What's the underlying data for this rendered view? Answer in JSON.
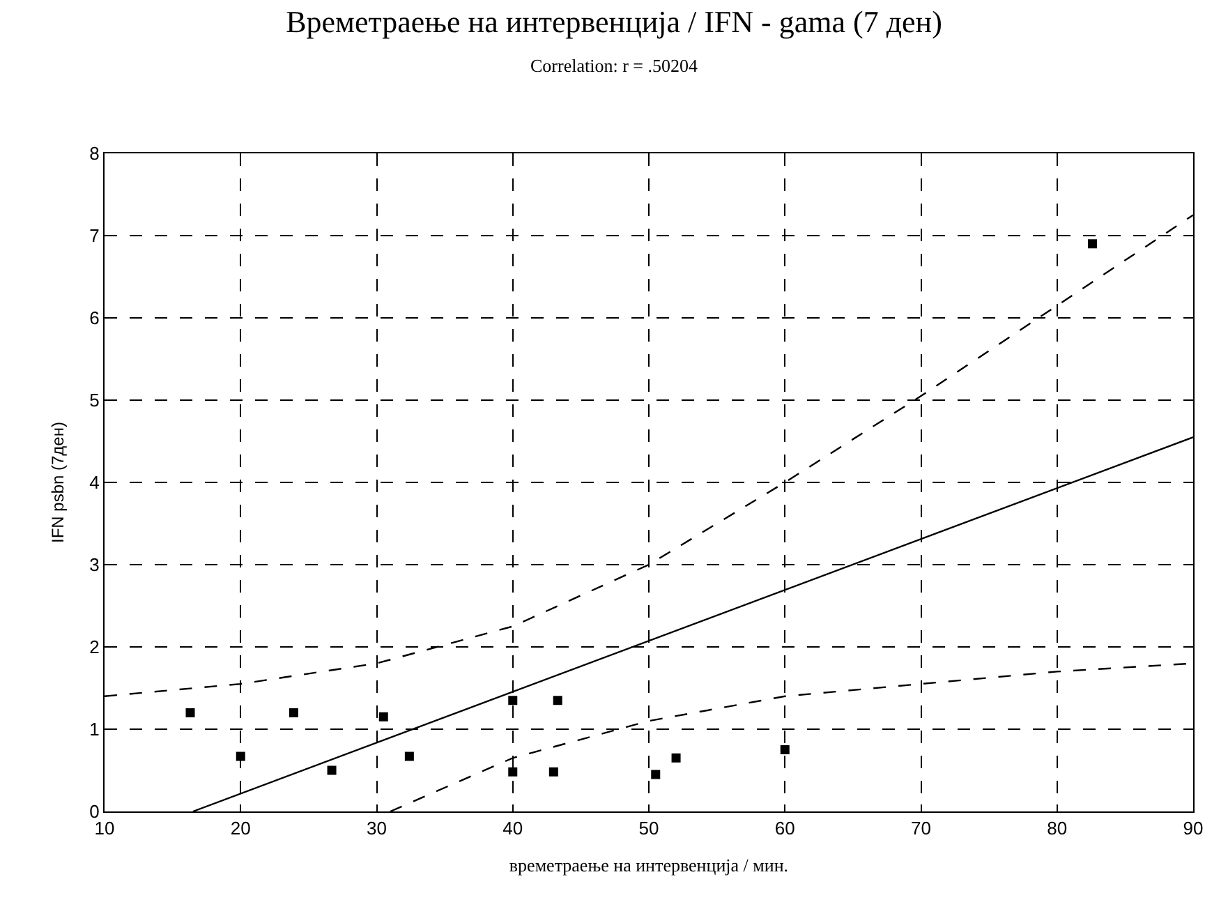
{
  "chart_data": {
    "type": "scatter",
    "title": "Времетраење на интервенција / IFN - gama (7 ден)",
    "subtitle": "Correlation: r = .50204",
    "xlabel": "времетраење на интервенција / мин.",
    "ylabel": "IFN psbn (7ден)",
    "xlim": [
      10,
      90
    ],
    "xticks": [
      10,
      20,
      30,
      40,
      50,
      60,
      70,
      80,
      90
    ],
    "ylim": [
      0,
      8
    ],
    "yticks": [
      0,
      1,
      2,
      3,
      4,
      5,
      6,
      7,
      8
    ],
    "grid": true,
    "series": [
      {
        "marker": "square",
        "color": "#000000",
        "x": [
          16.3,
          20,
          23.9,
          26.7,
          30.5,
          32.4,
          40,
          40,
          43,
          43.3,
          50.5,
          52,
          60,
          82.6
        ],
        "values": [
          1.2,
          0.67,
          1.2,
          0.5,
          1.15,
          0.67,
          1.35,
          0.48,
          0.48,
          1.35,
          0.45,
          0.65,
          0.75,
          6.9
        ]
      },
      {
        "type": "line",
        "line_style": "solid",
        "color": "#000000",
        "x": [
          16.5,
          90
        ],
        "values": [
          0,
          4.55
        ]
      },
      {
        "type": "line",
        "line_style": "dashed",
        "color": "#000000",
        "x": [
          10,
          20,
          30,
          40,
          50,
          60,
          70,
          80,
          90
        ],
        "values": [
          1.4,
          1.55,
          1.8,
          2.25,
          3.0,
          4.0,
          5.05,
          6.15,
          7.25
        ]
      },
      {
        "type": "line",
        "line_style": "dashed",
        "color": "#000000",
        "x": [
          31,
          40,
          50,
          60,
          70,
          80,
          90
        ],
        "values": [
          0,
          0.65,
          1.1,
          1.4,
          1.55,
          1.7,
          1.8
        ]
      }
    ]
  }
}
